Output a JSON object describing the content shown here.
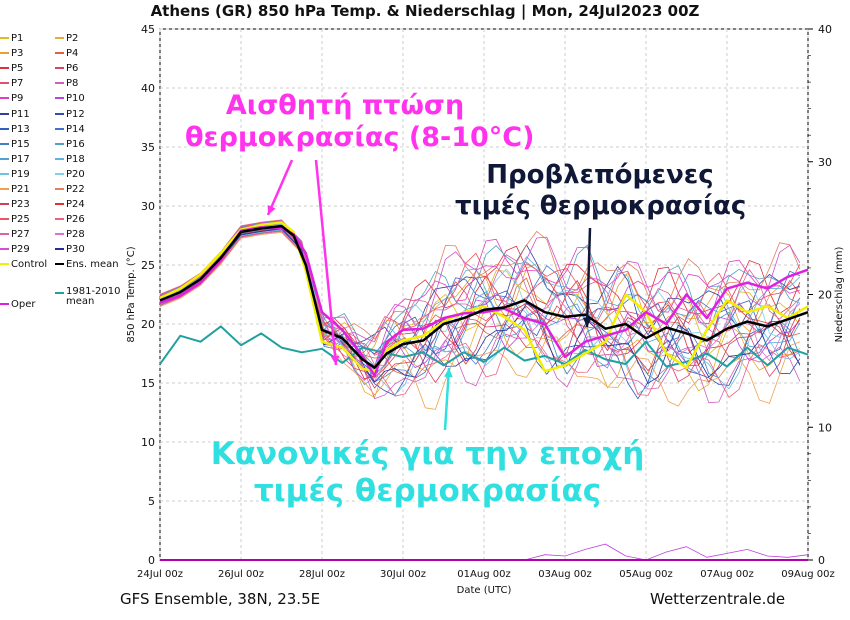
{
  "title": "Athens  (GR)  850 hPa Temp. & Niederschlag | Mon, 24Jul2023 00Z",
  "footer": {
    "left": "GFS Ensemble, 38N, 23.5E",
    "right": "Wetterzentrale.de"
  },
  "annotations": {
    "drop": [
      "Αισθητή πτώση",
      "θερμοκρασίας (8-10°C)"
    ],
    "forecast": [
      "Προβλεπόμενες",
      "τιμές θερμοκρασίας"
    ],
    "normal": [
      "Κανονικές για την εποχή",
      "τιμές θερμοκρασίας"
    ]
  },
  "legend": {
    "members": [
      {
        "name": "P1",
        "color": "#d8c020"
      },
      {
        "name": "P2",
        "color": "#e0b030"
      },
      {
        "name": "P3",
        "color": "#e8a030"
      },
      {
        "name": "P4",
        "color": "#e06040"
      },
      {
        "name": "P5",
        "color": "#e03040"
      },
      {
        "name": "P6",
        "color": "#e04060"
      },
      {
        "name": "P7",
        "color": "#e05070"
      },
      {
        "name": "P8",
        "color": "#d060c0"
      },
      {
        "name": "P9",
        "color": "#e040c0"
      },
      {
        "name": "P10",
        "color": "#c040e0"
      },
      {
        "name": "P11",
        "color": "#3040a0"
      },
      {
        "name": "P12",
        "color": "#3050b0"
      },
      {
        "name": "P13",
        "color": "#3060c0"
      },
      {
        "name": "P14",
        "color": "#4070d0"
      },
      {
        "name": "P15",
        "color": "#4080c0"
      },
      {
        "name": "P16",
        "color": "#50a0c0"
      },
      {
        "name": "P17",
        "color": "#50a0d0"
      },
      {
        "name": "P18",
        "color": "#60b0e0"
      },
      {
        "name": "P19",
        "color": "#70c0e0"
      },
      {
        "name": "P20",
        "color": "#80d0e8"
      },
      {
        "name": "P21",
        "color": "#f0a050"
      },
      {
        "name": "P22",
        "color": "#e08060"
      },
      {
        "name": "P23",
        "color": "#d04050"
      },
      {
        "name": "P24",
        "color": "#e03030"
      },
      {
        "name": "P25",
        "color": "#f05060"
      },
      {
        "name": "P26",
        "color": "#f06080"
      },
      {
        "name": "P27",
        "color": "#e060a0"
      },
      {
        "name": "P28",
        "color": "#e070d0"
      },
      {
        "name": "P29",
        "color": "#d050d0"
      },
      {
        "name": "P30",
        "color": "#2030a0"
      }
    ],
    "control": {
      "name": "Control",
      "color": "#f0f000"
    },
    "ens_mean": {
      "name": "Ens. mean",
      "color": "#000000"
    },
    "oper": {
      "name": "Oper",
      "color": "#e020e0"
    },
    "clim": {
      "name": "1981-2010\nmean",
      "color": "#20a0a0"
    }
  },
  "chart_data": {
    "type": "line",
    "title": "Athens  (GR)  850 hPa Temp. & Niederschlag | Mon, 24Jul2023 00Z",
    "xlabel": "Date (UTC)",
    "ylabel": "850 hPa Temp. (°C)",
    "y2label": "Niederschlag (mm)",
    "xticks": [
      "24Jul 00z",
      "26Jul 00z",
      "28Jul 00z",
      "30Jul 00z",
      "01Aug 00z",
      "03Aug 00z",
      "05Aug 00z",
      "07Aug 00z",
      "09Aug 00z"
    ],
    "xlim_days": [
      0,
      16
    ],
    "ylim": [
      0,
      45
    ],
    "yticks": [
      0,
      5,
      10,
      15,
      20,
      25,
      30,
      35,
      40,
      45
    ],
    "y2lim": [
      0,
      40
    ],
    "y2ticks": [
      0,
      10,
      20,
      30,
      40
    ],
    "grid": true,
    "ens_mean": [
      [
        0,
        22.0
      ],
      [
        0.5,
        22.7
      ],
      [
        1,
        23.8
      ],
      [
        1.5,
        25.6
      ],
      [
        2,
        27.8
      ],
      [
        2.5,
        28.1
      ],
      [
        3,
        28.3
      ],
      [
        3.3,
        27.5
      ],
      [
        3.6,
        25.0
      ],
      [
        4,
        19.5
      ],
      [
        4.5,
        18.8
      ],
      [
        5,
        17.0
      ],
      [
        5.3,
        16.3
      ],
      [
        5.6,
        17.5
      ],
      [
        6,
        18.3
      ],
      [
        6.5,
        18.6
      ],
      [
        7,
        20.0
      ],
      [
        7.5,
        20.5
      ],
      [
        8,
        21.2
      ],
      [
        8.5,
        21.4
      ],
      [
        9,
        22.0
      ],
      [
        9.5,
        21.0
      ],
      [
        10,
        20.6
      ],
      [
        10.5,
        20.8
      ],
      [
        11,
        19.6
      ],
      [
        11.5,
        20.0
      ],
      [
        12,
        18.8
      ],
      [
        12.5,
        19.7
      ],
      [
        13,
        19.2
      ],
      [
        13.5,
        18.6
      ],
      [
        14,
        19.6
      ],
      [
        14.5,
        20.2
      ],
      [
        15,
        19.8
      ],
      [
        15.5,
        20.4
      ],
      [
        16,
        21.0
      ]
    ],
    "control": [
      [
        0,
        22.2
      ],
      [
        0.5,
        23.0
      ],
      [
        1,
        24.2
      ],
      [
        1.5,
        26.0
      ],
      [
        2,
        28.0
      ],
      [
        2.5,
        28.4
      ],
      [
        3,
        28.6
      ],
      [
        3.3,
        27.8
      ],
      [
        3.6,
        24.5
      ],
      [
        4,
        18.5
      ],
      [
        4.5,
        18.0
      ],
      [
        5,
        16.2
      ],
      [
        5.3,
        16.0
      ],
      [
        5.6,
        17.8
      ],
      [
        6,
        18.6
      ],
      [
        6.5,
        19.0
      ],
      [
        7,
        20.2
      ],
      [
        7.5,
        21.0
      ],
      [
        8,
        21.5
      ],
      [
        8.5,
        20.6
      ],
      [
        9,
        19.5
      ],
      [
        9.5,
        16.0
      ],
      [
        10,
        16.5
      ],
      [
        10.5,
        17.5
      ],
      [
        11,
        18.5
      ],
      [
        11.5,
        22.5
      ],
      [
        12,
        21.0
      ],
      [
        12.5,
        17.5
      ],
      [
        13,
        16.3
      ],
      [
        13.5,
        19.5
      ],
      [
        14,
        22.0
      ],
      [
        14.5,
        21.0
      ],
      [
        15,
        21.5
      ],
      [
        15.5,
        20.5
      ],
      [
        16,
        21.5
      ]
    ],
    "oper": [
      [
        0,
        21.8
      ],
      [
        0.5,
        22.4
      ],
      [
        1,
        23.5
      ],
      [
        1.5,
        25.4
      ],
      [
        2,
        27.9
      ],
      [
        2.5,
        28.2
      ],
      [
        3,
        28.1
      ],
      [
        3.3,
        27.6
      ],
      [
        3.6,
        26.0
      ],
      [
        4,
        21.0
      ],
      [
        4.5,
        19.5
      ],
      [
        5,
        17.3
      ],
      [
        5.3,
        15.6
      ],
      [
        5.6,
        18.5
      ],
      [
        6,
        19.5
      ],
      [
        6.5,
        19.6
      ],
      [
        7,
        20.5
      ],
      [
        7.5,
        20.9
      ],
      [
        8,
        21.0
      ],
      [
        8.5,
        21.3
      ],
      [
        9,
        20.5
      ],
      [
        9.5,
        20.0
      ],
      [
        10,
        17.2
      ],
      [
        10.5,
        18.5
      ],
      [
        11,
        19.0
      ],
      [
        11.5,
        19.5
      ],
      [
        12,
        21.0
      ],
      [
        12.5,
        20.0
      ],
      [
        13,
        22.5
      ],
      [
        13.5,
        20.5
      ],
      [
        14,
        23.0
      ],
      [
        14.5,
        23.5
      ],
      [
        15,
        23.0
      ],
      [
        15.5,
        24.0
      ],
      [
        16,
        24.6
      ]
    ],
    "clim_mean": [
      [
        0,
        16.6
      ],
      [
        0.5,
        19.0
      ],
      [
        1,
        18.5
      ],
      [
        1.5,
        19.8
      ],
      [
        2,
        18.2
      ],
      [
        2.5,
        19.2
      ],
      [
        3,
        18.0
      ],
      [
        3.5,
        17.6
      ],
      [
        4,
        17.9
      ],
      [
        4.5,
        16.7
      ],
      [
        5,
        18.0
      ],
      [
        5.5,
        17.6
      ],
      [
        6,
        17.2
      ],
      [
        6.5,
        17.6
      ],
      [
        7,
        16.5
      ],
      [
        7.5,
        17.6
      ],
      [
        8,
        16.8
      ],
      [
        8.5,
        18.0
      ],
      [
        9,
        16.9
      ],
      [
        9.5,
        17.3
      ],
      [
        10,
        16.6
      ],
      [
        10.5,
        17.8
      ],
      [
        11,
        17.0
      ],
      [
        11.5,
        16.6
      ],
      [
        12,
        18.5
      ],
      [
        12.5,
        16.4
      ],
      [
        13,
        16.8
      ],
      [
        13.5,
        17.5
      ],
      [
        14,
        16.4
      ],
      [
        14.5,
        18.0
      ],
      [
        15,
        16.5
      ],
      [
        15.5,
        18.0
      ],
      [
        16,
        17.4
      ]
    ],
    "member_spread": {
      "start_days": 3.8,
      "first_part": [
        [
          0,
          22.0
        ],
        [
          0.5,
          22.7
        ],
        [
          1,
          23.8
        ],
        [
          1.5,
          25.6
        ],
        [
          2,
          27.8
        ],
        [
          2.5,
          28.1
        ],
        [
          3,
          28.3
        ],
        [
          3.5,
          26.5
        ]
      ],
      "member_offsets": [
        1.0,
        -2.0,
        1.5,
        -0.5,
        2.5,
        -1.5,
        0.5,
        -3.0,
        3.0,
        -1.0,
        2.0,
        -2.5,
        0.0,
        1.2,
        -1.8,
        2.8,
        -0.8,
        1.8,
        -2.2,
        0.8,
        -3.5,
        3.5,
        -1.2,
        0.3,
        2.2,
        -2.8,
        1.5,
        -0.3,
        3.2,
        -1.6
      ]
    },
    "precip_mm": [
      [
        0,
        0
      ],
      [
        9,
        0
      ],
      [
        9.5,
        0.4
      ],
      [
        10,
        0.3
      ],
      [
        10.5,
        0.8
      ],
      [
        11,
        1.2
      ],
      [
        11.5,
        0.3
      ],
      [
        12,
        0
      ],
      [
        12.5,
        0.6
      ],
      [
        13,
        1.0
      ],
      [
        13.5,
        0.2
      ],
      [
        14,
        0.5
      ],
      [
        14.5,
        0.8
      ],
      [
        15,
        0.3
      ],
      [
        15.5,
        0.2
      ],
      [
        16,
        0.4
      ]
    ]
  }
}
